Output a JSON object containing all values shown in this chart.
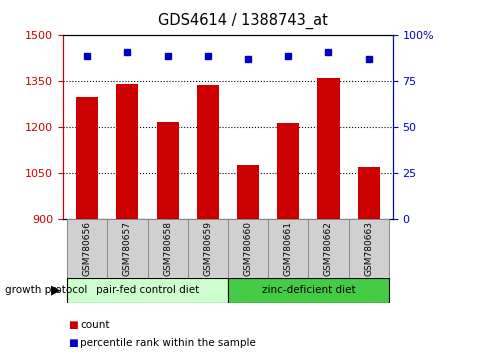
{
  "title": "GDS4614 / 1388743_at",
  "samples": [
    "GSM780656",
    "GSM780657",
    "GSM780658",
    "GSM780659",
    "GSM780660",
    "GSM780661",
    "GSM780662",
    "GSM780663"
  ],
  "counts": [
    1300,
    1342,
    1218,
    1338,
    1078,
    1215,
    1362,
    1070
  ],
  "percentiles": [
    89,
    91,
    89,
    89,
    87,
    89,
    91,
    87
  ],
  "ylim_left": [
    900,
    1500
  ],
  "ylim_right": [
    0,
    100
  ],
  "yticks_left": [
    900,
    1050,
    1200,
    1350,
    1500
  ],
  "yticks_right": [
    0,
    25,
    50,
    75,
    100
  ],
  "ytick_labels_right": [
    "0",
    "25",
    "50",
    "75",
    "100%"
  ],
  "grid_values": [
    1050,
    1200,
    1350
  ],
  "bar_color": "#cc0000",
  "dot_color": "#0000cc",
  "group1_label": "pair-fed control diet",
  "group2_label": "zinc-deficient diet",
  "group1_color": "#ccffcc",
  "group2_color": "#44cc44",
  "group1_indices": [
    0,
    1,
    2,
    3
  ],
  "group2_indices": [
    4,
    5,
    6,
    7
  ],
  "legend_count_label": "count",
  "legend_pct_label": "percentile rank within the sample",
  "growth_protocol_label": "growth protocol",
  "left_tick_color": "#cc0000",
  "right_tick_color": "#0000cc",
  "bar_width": 0.55,
  "base_value": 900,
  "label_box_color": "#d0d0d0",
  "label_box_edge": "#888888"
}
